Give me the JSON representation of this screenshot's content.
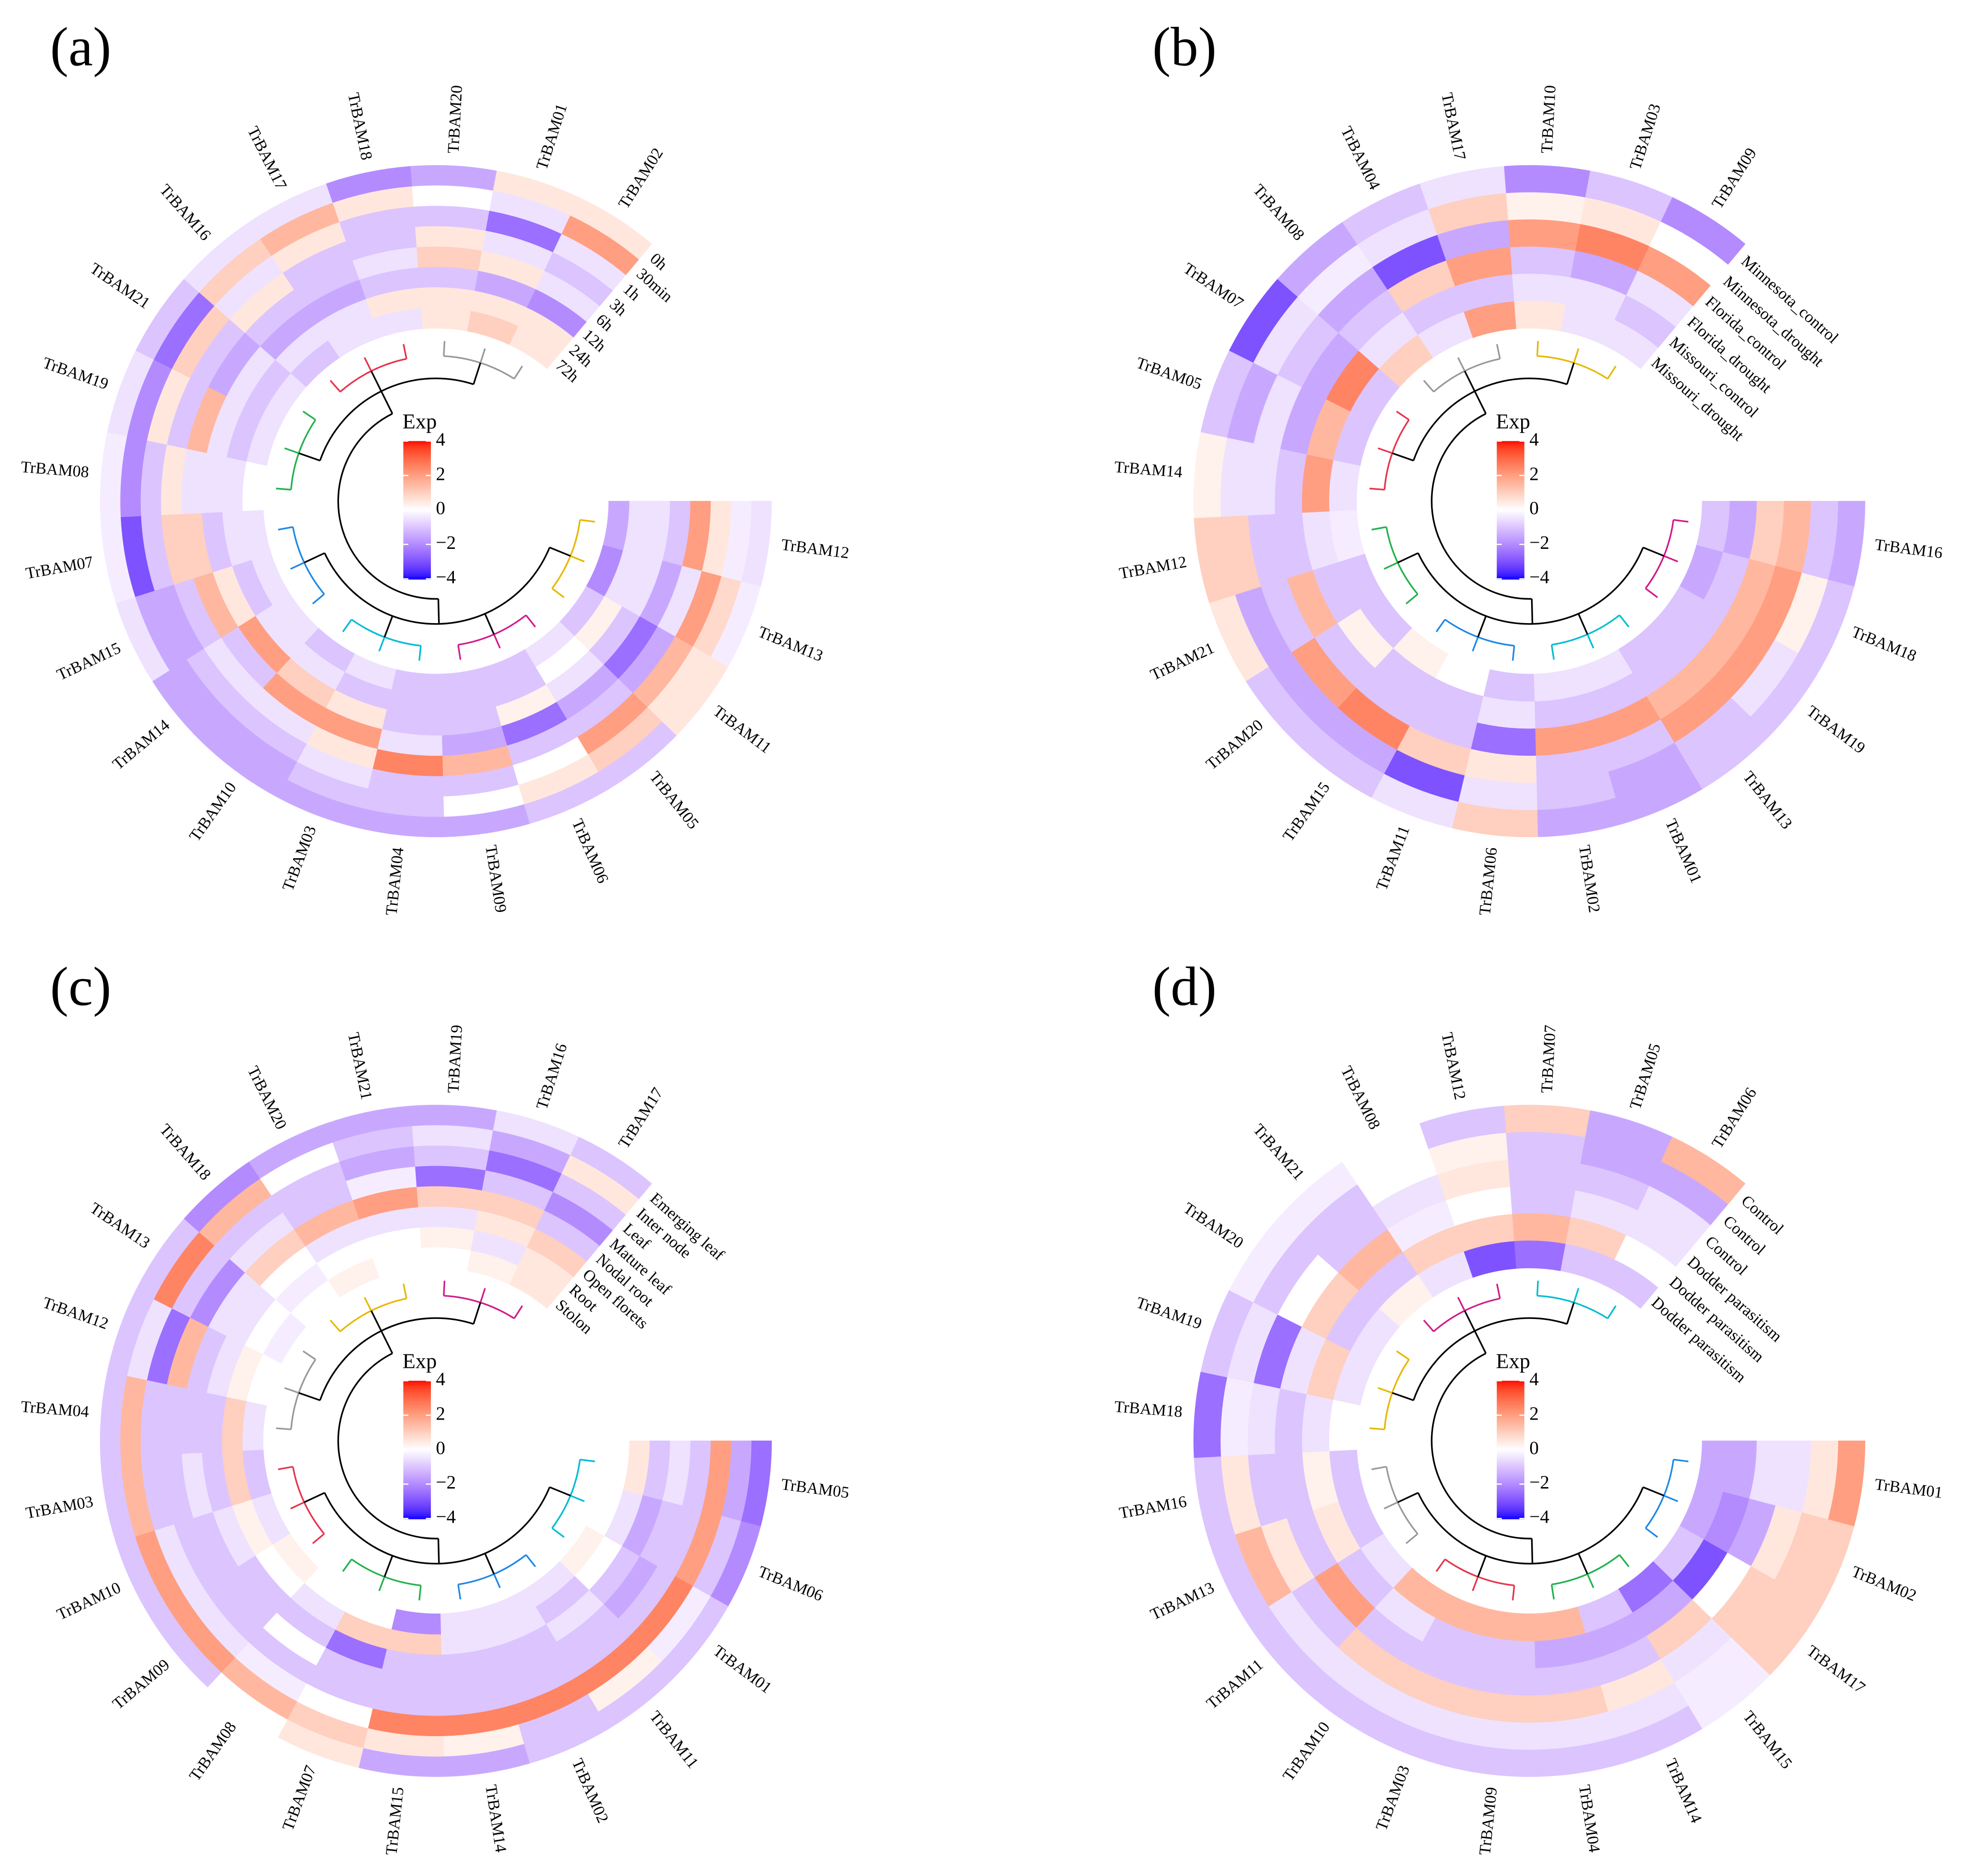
{
  "chart_data": [
    {
      "type": "circular-heatmap",
      "label": "(a)",
      "rows": [
        "TrBAM12",
        "TrBAM13",
        "TrBAM11",
        "TrBAM05",
        "TrBAM06",
        "TrBAM09",
        "TrBAM04",
        "TrBAM03",
        "TrBAM10",
        "TrBAM14",
        "TrBAM15",
        "TrBAM07",
        "TrBAM08",
        "TrBAM19",
        "TrBAM21",
        "TrBAM16",
        "TrBAM17",
        "TrBAM18",
        "TrBAM20",
        "TrBAM01",
        "TrBAM02"
      ],
      "columns": [
        "0h",
        "30min",
        "1h",
        "3h",
        "6h",
        "12h",
        "24h",
        "72h"
      ],
      "values": [
        [
          -0.5,
          -0.3,
          0.5,
          2,
          -1,
          -0.5,
          -0.5,
          -1.5
        ],
        [
          -0.3,
          0.8,
          2,
          -0.5,
          -1.5,
          -0.5,
          -0.5,
          -2
        ],
        [
          0.5,
          0.5,
          1.5,
          -1.5,
          -2.5,
          -1,
          0.3,
          -1
        ],
        [
          -1,
          1,
          2,
          -1,
          -1.5,
          -0.5,
          0,
          -0.5
        ],
        [
          -1,
          0.5,
          0,
          -1,
          -2.5,
          0.3,
          -1,
          -1
        ],
        [
          -1.5,
          0,
          -1,
          1.5,
          -1.5,
          -1,
          -1,
          -1
        ],
        [
          -1.5,
          -1,
          -1,
          2.5,
          -0.5,
          -1,
          -1,
          -1
        ],
        [
          -1.5,
          -1,
          -0.5,
          0.5,
          2,
          0.5,
          -1,
          -0.5
        ],
        [
          -1.5,
          -1.5,
          -1,
          -0.5,
          2,
          1,
          -0.5,
          -1
        ],
        [
          -1.5,
          -1.5,
          -1,
          -0.5,
          -1,
          2,
          -0.5,
          -0.5
        ],
        [
          -0.5,
          -1.5,
          -1.5,
          -1,
          1.5,
          0.5,
          -1,
          -0.5
        ],
        [
          -0.3,
          -3,
          -1,
          1,
          1,
          -1,
          -0.5,
          -0.5
        ],
        [
          -0.3,
          -2,
          -1,
          0.5,
          -0.5,
          -0.5,
          -0.5,
          0
        ],
        [
          -0.5,
          -2,
          0.5,
          -1,
          1.5,
          -0.5,
          -1,
          -0.5
        ],
        [
          -1,
          -2.5,
          1,
          -1,
          -1.5,
          -0.5,
          -1,
          -0.5
        ],
        [
          -0.5,
          1,
          -0.5,
          0.5,
          -1,
          -1.5,
          -0.5,
          -1
        ],
        [
          -0.5,
          1.5,
          0.5,
          -1,
          -1,
          -1.5,
          -0.5,
          -0.5
        ],
        [
          -2,
          0.5,
          -1,
          -1,
          -0.5,
          -1,
          0.5,
          -0.5
        ],
        [
          -1.5,
          0,
          -1,
          0.5,
          1,
          -1,
          0.5,
          0.5
        ],
        [
          0.5,
          -0.5,
          -2.5,
          -0.5,
          0.5,
          -1.5,
          0.5,
          1
        ],
        [
          0.5,
          2,
          -0.5,
          -1,
          -0.5,
          -2,
          0.5,
          0.5
        ]
      ],
      "colorscale": [
        {
          "value": -4,
          "color": "#0000ff"
        },
        {
          "value": 0,
          "color": "#ffffff"
        },
        {
          "value": 4,
          "color": "#ff0000"
        }
      ],
      "colorbar": {
        "title": "Exp",
        "lim": [
          -4,
          4
        ],
        "ticks": [
          4,
          2,
          0,
          {
            "value": -2,
            "label": "−2"
          },
          {
            "value": -4,
            "label": "−4"
          }
        ]
      }
    },
    {
      "type": "circular-heatmap",
      "label": "(b)",
      "rows": [
        "TrBAM16",
        "TrBAM18",
        "TrBAM19",
        "TrBAM13",
        "TrBAM01",
        "TrBAM02",
        "TrBAM06",
        "TrBAM11",
        "TrBAM15",
        "TrBAM20",
        "TrBAM21",
        "TrBAM12",
        "TrBAM14",
        "TrBAM05",
        "TrBAM07",
        "TrBAM08",
        "TrBAM04",
        "TrBAM17",
        "TrBAM10",
        "TrBAM03",
        "TrBAM09"
      ],
      "columns": [
        "Minnesota_control",
        "Minnesota_drought",
        "Florida_control",
        "Florida_drought",
        "Missouri_control",
        "Missouri_drought"
      ],
      "values": [
        [
          -1.5,
          -1,
          1.5,
          1,
          -1.5,
          -1
        ],
        [
          -1,
          0.3,
          2,
          1.5,
          -1,
          -1.5
        ],
        [
          -1,
          -0.5,
          2,
          1.5,
          -1,
          -1
        ],
        [
          -1,
          -1,
          2,
          1.5,
          -1,
          -1
        ],
        [
          -1.5,
          -1.5,
          -1,
          2,
          -1,
          -0.5
        ],
        [
          -1.5,
          -1,
          -1,
          2,
          -1,
          -0.5
        ],
        [
          1,
          -0.5,
          0.5,
          -2.5,
          -0.5,
          -1
        ],
        [
          -0.5,
          -3,
          1,
          -1,
          -1,
          0
        ],
        [
          -1,
          -1.5,
          2.5,
          -1,
          -1,
          0.3
        ],
        [
          -1,
          -1.5,
          2,
          -1,
          0.3,
          -1
        ],
        [
          0.5,
          -1.5,
          -1,
          1.5,
          -1,
          -1
        ],
        [
          1,
          1,
          -1,
          -1,
          -0.5,
          -0.3
        ],
        [
          0.3,
          -0.5,
          -0.5,
          -1,
          2,
          -0.5
        ],
        [
          -1,
          -1.5,
          -0.5,
          -1.5,
          1.5,
          -1
        ],
        [
          -3,
          -0.5,
          -1,
          -1.5,
          2.5,
          -1
        ],
        [
          -1.5,
          -0.3,
          -1.5,
          -1,
          -0.5,
          1
        ],
        [
          -1,
          -0.5,
          -3,
          1,
          -1,
          -0.5
        ],
        [
          -0.5,
          1,
          -1.5,
          2,
          -1,
          2
        ],
        [
          -2,
          0.3,
          2,
          -1,
          -0.5,
          0.5
        ],
        [
          -1,
          0.5,
          2.5,
          -1.5,
          -0.5,
          -0.5
        ],
        [
          -2,
          0,
          2,
          -0.5,
          -1,
          -0.5
        ]
      ],
      "colorscale": [
        {
          "value": -4,
          "color": "#0000ff"
        },
        {
          "value": 0,
          "color": "#ffffff"
        },
        {
          "value": 4,
          "color": "#ff0000"
        }
      ],
      "colorbar": {
        "title": "Exp",
        "lim": [
          -4,
          4
        ],
        "ticks": [
          4,
          2,
          0,
          {
            "value": -2,
            "label": "−2"
          },
          {
            "value": -4,
            "label": "−4"
          }
        ]
      }
    },
    {
      "type": "circular-heatmap",
      "label": "(c)",
      "rows": [
        "TrBAM05",
        "TrBAM06",
        "TrBAM01",
        "TrBAM11",
        "TrBAM02",
        "TrBAM14",
        "TrBAM15",
        "TrBAM07",
        "TrBAM08",
        "TrBAM09",
        "TrBAM10",
        "TrBAM03",
        "TrBAM04",
        "TrBAM12",
        "TrBAM13",
        "TrBAM18",
        "TrBAM20",
        "TrBAM21",
        "TrBAM19",
        "TrBAM16",
        "TrBAM17"
      ],
      "columns": [
        "Emerging leaf",
        "Inter node",
        "Leaf",
        "Mature leaf",
        "Nodal root",
        "Open florets",
        "Root",
        "Stolon"
      ],
      "values": [
        [
          -2.5,
          -1.5,
          2,
          -1,
          -0.5,
          -1,
          0.5,
          0
        ],
        [
          -2,
          -1,
          2,
          -1,
          -1,
          -1.5,
          -0.5,
          0
        ],
        [
          -1,
          -0.3,
          2.5,
          -1,
          -1.5,
          -1,
          0,
          0.3
        ],
        [
          -1,
          0.3,
          2.5,
          -1,
          -1,
          -0.5,
          -1,
          -0.5
        ],
        [
          -1,
          -1,
          2.5,
          -1,
          -1,
          -1,
          -0.5,
          -0.5
        ],
        [
          -1.5,
          0.3,
          2.5,
          -1,
          -1,
          -1,
          -0.5,
          -0.5
        ],
        [
          -1.5,
          0.5,
          2.5,
          -1,
          -1,
          -1,
          1,
          -2
        ],
        [
          0.5,
          1,
          0,
          -1,
          -1,
          -2.5,
          1,
          0
        ],
        [
          0,
          1.5,
          -0.3,
          -1,
          0,
          -1,
          -0.5,
          0
        ],
        [
          -1,
          2,
          -0.5,
          -1,
          -1,
          -1,
          0,
          0.3
        ],
        [
          -1,
          2,
          -0.5,
          -1,
          -1,
          -0.5,
          0.3,
          -0.5
        ],
        [
          -1,
          1.5,
          -1,
          -1,
          -0.5,
          -1,
          1,
          -1
        ],
        [
          -1,
          1.5,
          -1,
          -1,
          -1,
          -1,
          1,
          -0.5
        ],
        [
          -1,
          -0.5,
          -2.5,
          1.5,
          -1,
          -0.5,
          0.3,
          0
        ],
        [
          -1,
          2.5,
          -1,
          -2,
          -0.5,
          -0.5,
          0,
          -0.3
        ],
        [
          -2,
          1.5,
          -1,
          -0.5,
          1,
          0,
          -0.3,
          0
        ],
        [
          -1.5,
          0,
          -1,
          -1,
          1.5,
          -0.5,
          0,
          0.3
        ],
        [
          -1.5,
          -1,
          -1.5,
          -0.3,
          2,
          -0.5,
          0,
          0
        ],
        [
          -1.5,
          -0.5,
          -1,
          -2.5,
          1,
          -0.5,
          0.3,
          0
        ],
        [
          -0.5,
          -1.5,
          -2.5,
          -1,
          1,
          0.5,
          -0.5,
          0.3
        ],
        [
          -1,
          0.5,
          -1,
          -2,
          -1,
          1,
          0.5,
          0.5
        ]
      ],
      "colorscale": [
        {
          "value": -4,
          "color": "#0000ff"
        },
        {
          "value": 0,
          "color": "#ffffff"
        },
        {
          "value": 4,
          "color": "#ff0000"
        }
      ],
      "colorbar": {
        "title": "Exp",
        "lim": [
          -4,
          4
        ],
        "ticks": [
          4,
          2,
          0,
          {
            "value": -2,
            "label": "−2"
          },
          {
            "value": -4,
            "label": "−4"
          }
        ]
      }
    },
    {
      "type": "circular-heatmap",
      "label": "(d)",
      "rows": [
        "TrBAM01",
        "TrBAM02",
        "TrBAM17",
        "TrBAM15",
        "TrBAM14",
        "TrBAM04",
        "TrBAM09",
        "TrBAM03",
        "TrBAM10",
        "TrBAM11",
        "TrBAM13",
        "TrBAM16",
        "TrBAM18",
        "TrBAM19",
        "TrBAM20",
        "TrBAM21",
        "TrBAM08",
        "TrBAM12",
        "TrBAM07",
        "TrBAM05",
        "TrBAM06"
      ],
      "columns": [
        "Control",
        "Control",
        "Control",
        "Dodder parasitism",
        "Dodder parasitism",
        "Dodder parasitism"
      ],
      "values": [
        [
          2,
          0.5,
          -0.5,
          -0.5,
          -1.5,
          -1.5
        ],
        [
          1,
          1,
          0.5,
          -1.5,
          -2,
          -1.5
        ],
        [
          1,
          1,
          1,
          0,
          -3,
          -1
        ],
        [
          -0.3,
          -0.3,
          -0.5,
          1,
          -1.5,
          -2.5
        ],
        [
          -1,
          -0.5,
          0.5,
          -1,
          -1.5,
          -1
        ],
        [
          -1,
          -0.5,
          1,
          -1,
          -1.5,
          1.5
        ],
        [
          -1,
          -0.5,
          1,
          -1,
          -1,
          1.5
        ],
        [
          -1,
          -0.5,
          1,
          -1,
          -1,
          1.5
        ],
        [
          -1,
          -0.5,
          1,
          -1,
          -0.5,
          1.5
        ],
        [
          -1,
          -0.5,
          -1,
          2,
          -1,
          -0.5
        ],
        [
          -1,
          1.5,
          0.5,
          -1,
          0.5,
          -1
        ],
        [
          -1,
          0.5,
          -1,
          -1,
          0.3,
          -1
        ],
        [
          -2.5,
          -0.3,
          -0.5,
          -1,
          -0.5,
          0
        ],
        [
          -1,
          -0.5,
          -2.5,
          -0.5,
          1,
          -0.5
        ],
        [
          -0.3,
          -1,
          0,
          1,
          -1,
          -0.5
        ],
        [
          -0.3,
          -1,
          -1,
          1.5,
          -1,
          0.3
        ],
        [
          0,
          0,
          -0.5,
          -0.3,
          1,
          -0.5
        ],
        [
          -1,
          0.3,
          0.5,
          0,
          1,
          -3
        ],
        [
          1,
          -1,
          -1,
          -1,
          1.5,
          -2.5
        ],
        [
          -1.5,
          -1.5,
          -1,
          -0.5,
          1,
          -1
        ],
        [
          1.5,
          -1.5,
          -0.5,
          -0.5,
          0,
          -1
        ]
      ],
      "colorscale": [
        {
          "value": -4,
          "color": "#0000ff"
        },
        {
          "value": 0,
          "color": "#ffffff"
        },
        {
          "value": 4,
          "color": "#ff0000"
        }
      ],
      "colorbar": {
        "title": "Exp",
        "lim": [
          -4,
          4
        ],
        "ticks": [
          4,
          2,
          0,
          {
            "value": -2,
            "label": "−2"
          },
          {
            "value": -4,
            "label": "−4"
          }
        ]
      }
    }
  ]
}
